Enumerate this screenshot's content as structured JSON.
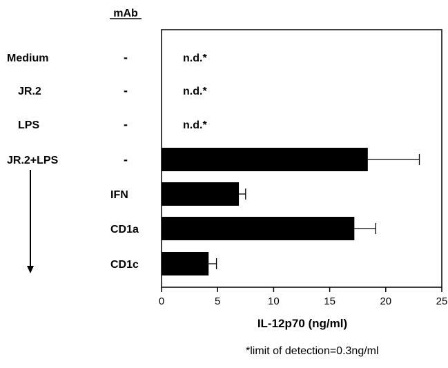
{
  "chart_data": {
    "type": "bar",
    "orientation": "horizontal",
    "column_header": "mAb",
    "xlabel": "IL-12p70 (ng/ml)",
    "xlim": [
      0,
      25
    ],
    "x_ticks": [
      "0",
      "5",
      "10",
      "15",
      "20",
      "25"
    ],
    "rows": [
      {
        "condition": "Medium",
        "mab": "-",
        "value": null,
        "error": null,
        "annotation": "n.d.*"
      },
      {
        "condition": "JR.2",
        "mab": "-",
        "value": null,
        "error": null,
        "annotation": "n.d.*"
      },
      {
        "condition": "LPS",
        "mab": "-",
        "value": null,
        "error": null,
        "annotation": "n.d.*"
      },
      {
        "condition": "JR.2+LPS",
        "mab": "-",
        "value": 18.4,
        "error": 4.6,
        "annotation": ""
      },
      {
        "condition": "",
        "mab": "IFN",
        "value": 6.9,
        "error": 0.6,
        "annotation": ""
      },
      {
        "condition": "",
        "mab": "CD1a",
        "value": 17.2,
        "error": 1.9,
        "annotation": ""
      },
      {
        "condition": "",
        "mab": "CD1c",
        "value": 4.2,
        "error": 0.7,
        "annotation": ""
      }
    ],
    "grid": false,
    "legend": "none",
    "bar_color": "#000000",
    "footnote": "*limit of detection=0.3ng/ml"
  }
}
